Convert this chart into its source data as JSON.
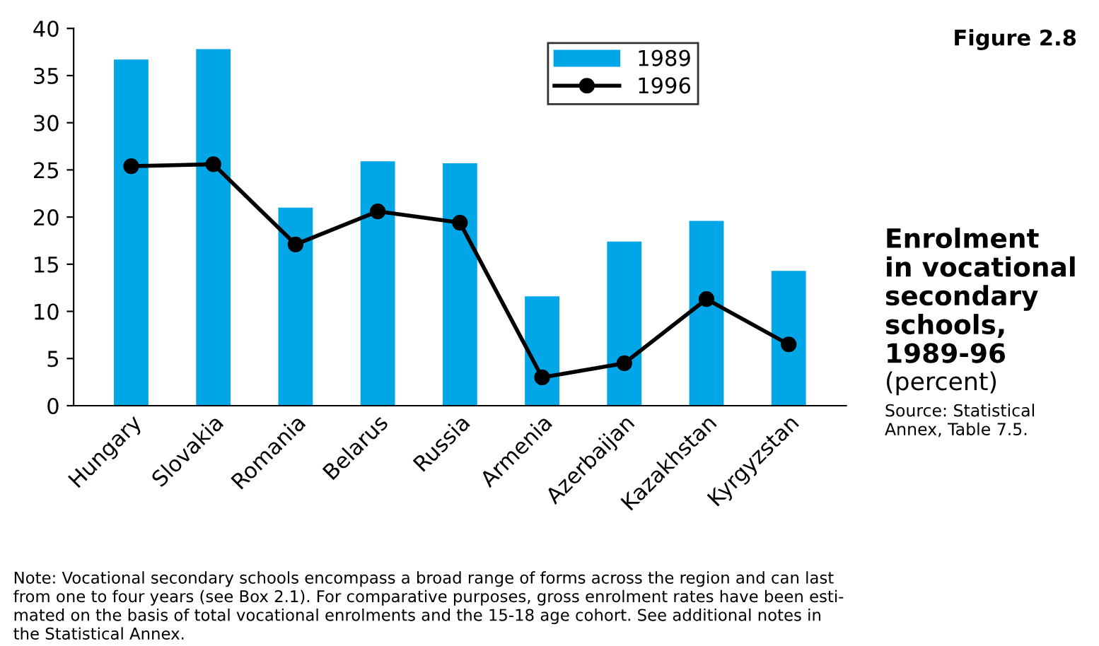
{
  "chart_data": {
    "type": "bar",
    "title": "Enrolment\nin vocational\nsecondary\nschools,\n1989-96",
    "subtitle": "(percent)",
    "categories": [
      "Hungary",
      "Slovakia",
      "Romania",
      "Belarus",
      "Russia",
      "Armenia",
      "Azerbaijan",
      "Kazakhstan",
      "Kyrgyzstan"
    ],
    "series": [
      {
        "name": "1989",
        "color": "#00a6e6",
        "values": [
          36.7,
          37.8,
          21.0,
          25.9,
          25.7,
          11.6,
          17.4,
          19.6,
          14.3
        ]
      },
      {
        "name": "1996",
        "type": "line",
        "color": "#000000",
        "marker": "circle",
        "line_style": "solid",
        "values": [
          25.4,
          25.6,
          17.1,
          20.6,
          19.4,
          3.0,
          4.5,
          11.3,
          6.5
        ]
      }
    ],
    "ylim": [
      0,
      40
    ],
    "yticks": [
      0,
      5,
      10,
      15,
      20,
      25,
      30,
      35,
      40
    ],
    "grid": false,
    "legend": "top right",
    "annotations": [
      "Figure 2.8",
      "Source: Statistical\nAnnex, Table 7.5.",
      "Note: Vocational secondary schools encompass a broad range of forms across the region and can last\nfrom one to four years (see Box 2.1). For comparative purposes, gross enrolment rates have been esti-\nmated on the basis of total vocational enrolments and the 15-18 age cohort. See additional notes in\nthe Statistical Annex."
    ]
  }
}
